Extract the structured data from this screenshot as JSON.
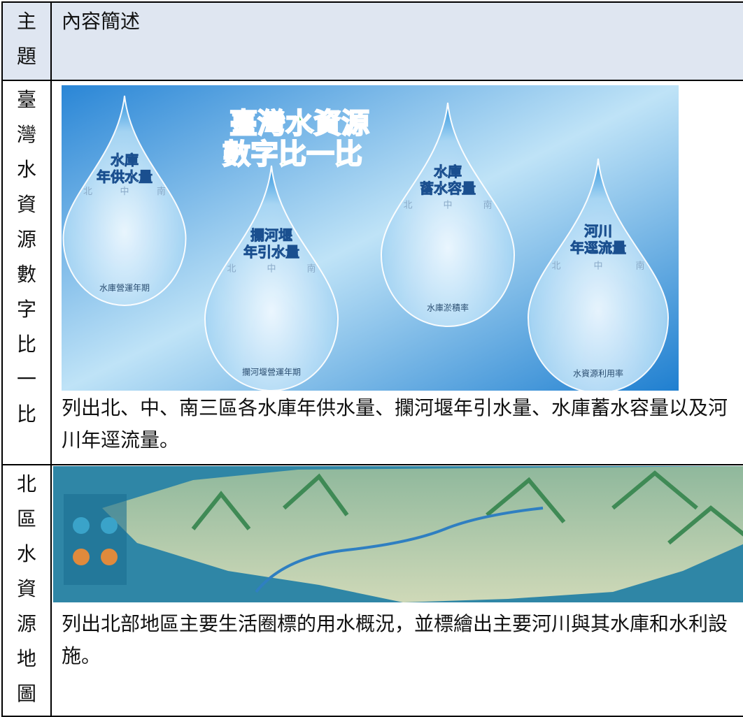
{
  "header": {
    "subject": "主題",
    "summary": "內容簡述"
  },
  "rows": [
    {
      "subject": "臺灣水資源數字比一比",
      "image": {
        "title": [
          "臺灣水資源",
          "數字比一比"
        ],
        "regions": [
          "北",
          "中",
          "南"
        ],
        "drops": [
          {
            "title": [
              "水庫",
              "年供水量"
            ],
            "footer": "水庫營運年期"
          },
          {
            "title": [
              "攔河堰",
              "年引水量"
            ],
            "footer": "攔河堰營運年期"
          },
          {
            "title": [
              "水庫",
              "蓄水容量"
            ],
            "footer": "水庫淤積率"
          },
          {
            "title": [
              "河川",
              "年逕流量"
            ],
            "footer": "水資源利用率"
          }
        ]
      },
      "description": "列出北、中、南三區各水庫年供水量、攔河堰年引水量、水庫蓄水容量以及河川年逕流量。"
    },
    {
      "subject": "北區水資源地圖",
      "description": "列出北部地區主要生活圈標的用水概況，並標繪出主要河川與其水庫和水利設施。"
    }
  ]
}
